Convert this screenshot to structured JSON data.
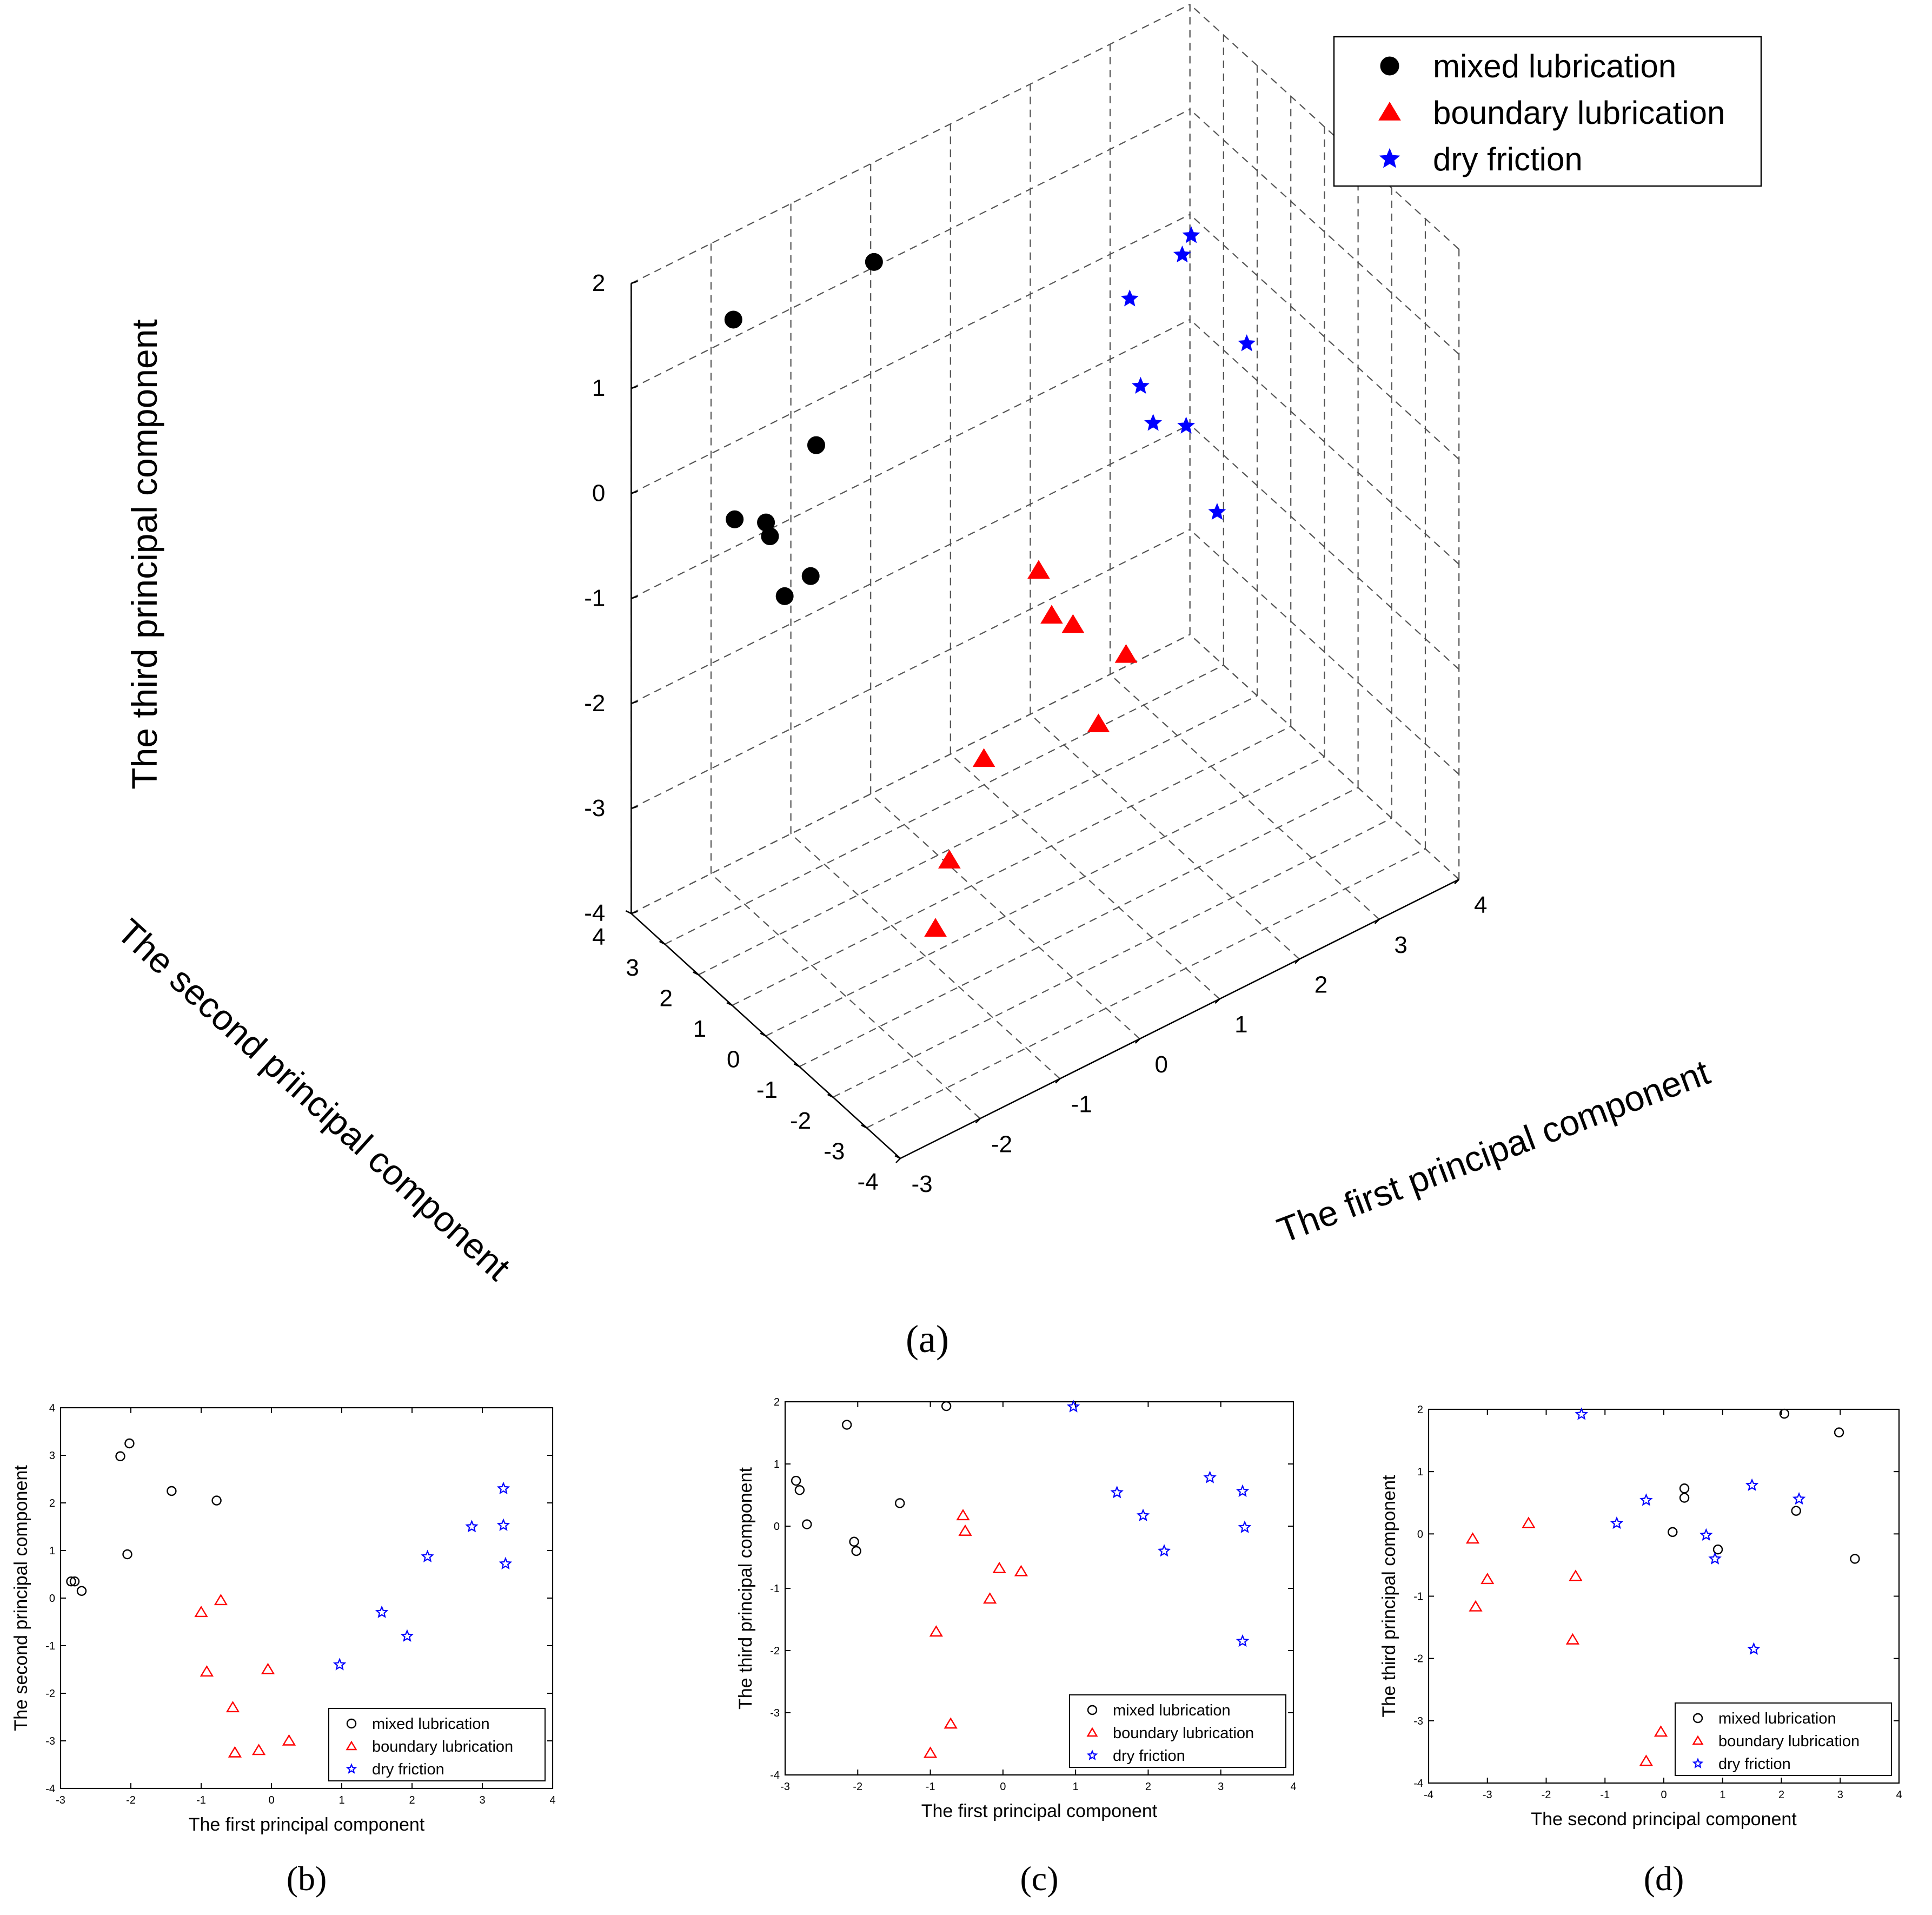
{
  "colors": {
    "mixed": "#000000",
    "boundary": "#ff0000",
    "dry": "#0000ff",
    "axis": "#000000",
    "grid": "#555555"
  },
  "chart_data": [
    {
      "type": "scatter3d",
      "panel_label": "(a)",
      "xlabel": "The first principal component",
      "ylabel": "The second principal component",
      "zlabel": "The third principal component",
      "xlim": [
        -3,
        4
      ],
      "ylim": [
        -4,
        4
      ],
      "zlim": [
        -4,
        2
      ],
      "grid": true,
      "xticks": [
        "-3",
        "-2",
        "-1",
        "0",
        "1",
        "2",
        "3",
        "4"
      ],
      "yticks": [
        "-4",
        "-3",
        "-2",
        "-1",
        "0",
        "1",
        "2",
        "3",
        "4"
      ],
      "zticks": [
        "-4",
        "-3",
        "-2",
        "-1",
        "0",
        "1",
        "2"
      ],
      "legend": {
        "position": "top-right",
        "entries": [
          "mixed lubrication",
          "boundary lubrication",
          "dry friction"
        ]
      },
      "series": [
        {
          "name": "mixed lubrication",
          "key": "mixed",
          "marker": "circle-filled",
          "points": [
            {
              "x": -2.85,
              "y": 0.35,
              "z": 0.73
            },
            {
              "x": -2.8,
              "y": 0.35,
              "z": 0.58
            },
            {
              "x": -2.7,
              "y": 0.15,
              "z": 0.03
            },
            {
              "x": -2.15,
              "y": 2.98,
              "z": 1.63
            },
            {
              "x": -2.05,
              "y": 0.92,
              "z": -0.25
            },
            {
              "x": -2.02,
              "y": 3.25,
              "z": -0.4
            },
            {
              "x": -1.42,
              "y": 2.25,
              "z": 0.37
            },
            {
              "x": -0.78,
              "y": 2.05,
              "z": 1.93
            }
          ]
        },
        {
          "name": "boundary lubrication",
          "key": "boundary",
          "marker": "triangle-filled",
          "points": [
            {
              "x": -1.0,
              "y": -0.3,
              "z": -3.65
            },
            {
              "x": -0.92,
              "y": -1.55,
              "z": -1.7
            },
            {
              "x": -0.72,
              "y": -0.05,
              "z": -3.18
            },
            {
              "x": -0.55,
              "y": -2.3,
              "z": 0.17
            },
            {
              "x": -0.52,
              "y": -3.25,
              "z": -0.08
            },
            {
              "x": -0.05,
              "y": -1.5,
              "z": -0.68
            },
            {
              "x": -0.18,
              "y": -3.2,
              "z": -1.17
            },
            {
              "x": 0.25,
              "y": -3.0,
              "z": -0.73
            }
          ]
        },
        {
          "name": "dry friction",
          "key": "dry",
          "marker": "star",
          "points": [
            {
              "x": 0.97,
              "y": -1.4,
              "z": 1.92
            },
            {
              "x": 1.57,
              "y": -0.3,
              "z": 0.54
            },
            {
              "x": 1.93,
              "y": -0.8,
              "z": 0.17
            },
            {
              "x": 2.22,
              "y": 0.87,
              "z": -0.4
            },
            {
              "x": 2.85,
              "y": 1.5,
              "z": 0.78
            },
            {
              "x": 3.3,
              "y": 2.3,
              "z": 0.56
            },
            {
              "x": 3.3,
              "y": 1.53,
              "z": -1.85
            },
            {
              "x": 3.33,
              "y": 0.72,
              "z": -0.02
            }
          ]
        }
      ]
    },
    {
      "type": "scatter",
      "panel_label": "(b)",
      "xlabel": "The first principal component",
      "ylabel": "The second principal component",
      "xlim": [
        -3,
        4
      ],
      "ylim": [
        -4,
        4
      ],
      "xticks": [
        "-3",
        "-2",
        "-1",
        "0",
        "1",
        "2",
        "3",
        "4"
      ],
      "yticks": [
        "-4",
        "-3",
        "-2",
        "-1",
        "0",
        "1",
        "2",
        "3",
        "4"
      ],
      "legend": {
        "position": "bottom-right",
        "entries": [
          "mixed lubrication",
          "boundary lubrication",
          "dry friction"
        ]
      },
      "series": [
        {
          "name": "mixed lubrication",
          "key": "mixed",
          "marker": "circle-open",
          "x": [
            -2.85,
            -2.8,
            -2.7,
            -2.15,
            -2.05,
            -2.02,
            -1.42,
            -0.78
          ],
          "y": [
            0.35,
            0.35,
            0.15,
            2.98,
            0.92,
            3.25,
            2.25,
            2.05
          ]
        },
        {
          "name": "boundary lubrication",
          "key": "boundary",
          "marker": "triangle-open",
          "x": [
            -1.0,
            -0.92,
            -0.72,
            -0.55,
            -0.52,
            -0.05,
            -0.18,
            0.25
          ],
          "y": [
            -0.3,
            -1.55,
            -0.05,
            -2.3,
            -3.25,
            -1.5,
            -3.2,
            -3.0
          ]
        },
        {
          "name": "dry friction",
          "key": "dry",
          "marker": "star-open",
          "x": [
            0.97,
            1.57,
            1.93,
            2.22,
            2.85,
            3.3,
            3.3,
            3.33
          ],
          "y": [
            -1.4,
            -0.3,
            -0.8,
            0.87,
            1.5,
            2.3,
            1.53,
            0.72
          ]
        }
      ]
    },
    {
      "type": "scatter",
      "panel_label": "(c)",
      "xlabel": "The first principal component",
      "ylabel": "The third principal component",
      "xlim": [
        -3,
        4
      ],
      "ylim": [
        -4,
        2
      ],
      "xticks": [
        "-3",
        "-2",
        "-1",
        "0",
        "1",
        "2",
        "3",
        "4"
      ],
      "yticks": [
        "-4",
        "-3",
        "-2",
        "-1",
        "0",
        "1",
        "2"
      ],
      "legend": {
        "position": "bottom-right",
        "entries": [
          "mixed lubrication",
          "boundary lubrication",
          "dry friction"
        ]
      },
      "series": [
        {
          "name": "mixed lubrication",
          "key": "mixed",
          "marker": "circle-open",
          "x": [
            -2.85,
            -2.8,
            -2.7,
            -2.15,
            -2.05,
            -2.02,
            -1.42,
            -0.78
          ],
          "y": [
            0.73,
            0.58,
            0.03,
            1.63,
            -0.25,
            -0.4,
            0.37,
            1.93
          ]
        },
        {
          "name": "boundary lubrication",
          "key": "boundary",
          "marker": "triangle-open",
          "x": [
            -1.0,
            -0.92,
            -0.72,
            -0.55,
            -0.52,
            -0.05,
            -0.18,
            0.25
          ],
          "y": [
            -3.65,
            -1.7,
            -3.18,
            0.17,
            -0.08,
            -0.68,
            -1.17,
            -0.73
          ]
        },
        {
          "name": "dry friction",
          "key": "dry",
          "marker": "star-open",
          "x": [
            0.97,
            1.57,
            1.93,
            2.22,
            2.85,
            3.3,
            3.3,
            3.33
          ],
          "y": [
            1.92,
            0.54,
            0.17,
            -0.4,
            0.78,
            0.56,
            -1.85,
            -0.02
          ]
        }
      ]
    },
    {
      "type": "scatter",
      "panel_label": "(d)",
      "xlabel": "The second principal component",
      "ylabel": "The third principal component",
      "xlim": [
        -4,
        4
      ],
      "ylim": [
        -4,
        2
      ],
      "xticks": [
        "-4",
        "-3",
        "-2",
        "-1",
        "0",
        "1",
        "2",
        "3",
        "4"
      ],
      "yticks": [
        "-4",
        "-3",
        "-2",
        "-1",
        "0",
        "1",
        "2"
      ],
      "legend": {
        "position": "bottom-right",
        "entries": [
          "mixed lubrication",
          "boundary lubrication",
          "dry friction"
        ]
      },
      "series": [
        {
          "name": "mixed lubrication",
          "key": "mixed",
          "marker": "circle-open",
          "x": [
            0.35,
            0.35,
            0.15,
            2.98,
            0.92,
            3.25,
            2.25,
            2.05
          ],
          "y": [
            0.73,
            0.58,
            0.03,
            1.63,
            -0.25,
            -0.4,
            0.37,
            1.93
          ]
        },
        {
          "name": "boundary lubrication",
          "key": "boundary",
          "marker": "triangle-open",
          "x": [
            -0.3,
            -1.55,
            -0.05,
            -2.3,
            -3.25,
            -1.5,
            -3.2,
            -3.0
          ],
          "y": [
            -3.65,
            -1.7,
            -3.18,
            0.17,
            -0.08,
            -0.68,
            -1.17,
            -0.73
          ]
        },
        {
          "name": "dry friction",
          "key": "dry",
          "marker": "star-open",
          "x": [
            -1.4,
            -0.3,
            -0.8,
            0.87,
            1.5,
            2.3,
            1.53,
            0.72
          ],
          "y": [
            1.92,
            0.54,
            0.17,
            -0.4,
            0.78,
            0.56,
            -1.85,
            -0.02
          ]
        }
      ]
    }
  ]
}
